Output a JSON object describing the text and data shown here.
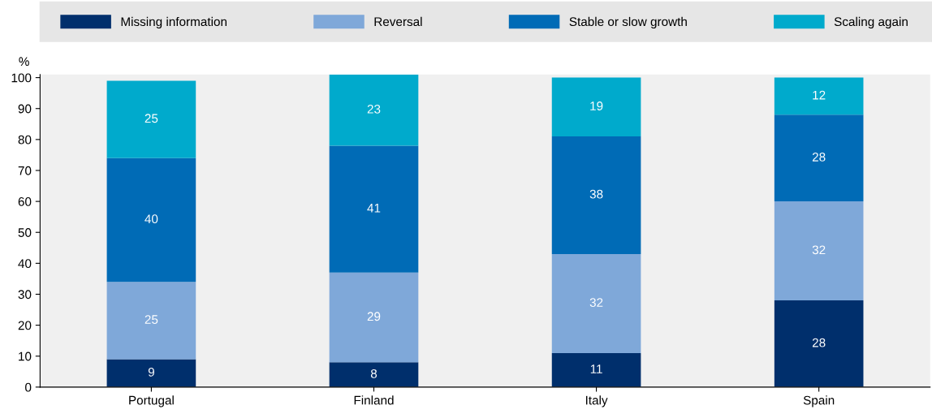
{
  "chart_data": {
    "type": "bar",
    "stacked": true,
    "ylabel": "%",
    "categories": [
      "Portugal",
      "Finland",
      "Italy",
      "Spain"
    ],
    "series": [
      {
        "name": "Missing information",
        "color": "#002f6c",
        "values": [
          9,
          8,
          11,
          28
        ]
      },
      {
        "name": "Reversal",
        "color": "#7fa8d9",
        "values": [
          25,
          29,
          32,
          32
        ]
      },
      {
        "name": "Stable or slow growth",
        "color": "#006bb6",
        "values": [
          40,
          41,
          38,
          28
        ]
      },
      {
        "name": "Scaling again",
        "color": "#00aacc",
        "values": [
          25,
          23,
          19,
          12
        ]
      }
    ],
    "ylim": [
      0,
      101
    ],
    "yticks": [
      0,
      10,
      20,
      30,
      40,
      50,
      60,
      70,
      80,
      90,
      100
    ],
    "data_labels": true,
    "grid": false,
    "legend": "top"
  }
}
